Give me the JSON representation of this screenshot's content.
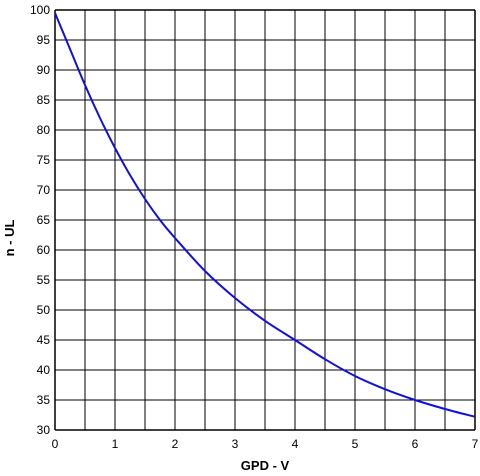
{
  "chart_data": {
    "type": "line",
    "title": "",
    "xlabel": "GPD - V",
    "ylabel": "n - UL",
    "xlim": [
      0,
      7
    ],
    "ylim": [
      30,
      100
    ],
    "x_ticks": [
      0,
      0.5,
      1,
      1.5,
      2,
      2.5,
      3,
      3.5,
      4,
      4.5,
      5,
      5.5,
      6,
      6.5,
      7
    ],
    "x_tick_labels": [
      "0",
      "",
      "1",
      "",
      "2",
      "",
      "3",
      "",
      "4",
      "",
      "5",
      "",
      "6",
      "",
      "7"
    ],
    "y_ticks": [
      30,
      35,
      40,
      45,
      50,
      55,
      60,
      65,
      70,
      75,
      80,
      85,
      90,
      95,
      100
    ],
    "y_tick_labels": [
      "30",
      "35",
      "40",
      "45",
      "50",
      "55",
      "60",
      "65",
      "70",
      "75",
      "80",
      "85",
      "90",
      "95",
      "100"
    ],
    "grid": true,
    "line_color": "#1010e0",
    "series": [
      {
        "x": [
          0,
          0.25,
          0.5,
          0.75,
          1,
          1.25,
          1.5,
          1.75,
          2,
          2.5,
          3,
          3.5,
          4,
          4.5,
          5,
          5.5,
          6,
          6.5,
          7
        ],
        "y": [
          99.5,
          93.5,
          87.5,
          82,
          77,
          72.5,
          68.5,
          65,
          62,
          56.5,
          52,
          48.2,
          45,
          41.8,
          39,
          36.8,
          35,
          33.5,
          32.2
        ]
      }
    ]
  }
}
